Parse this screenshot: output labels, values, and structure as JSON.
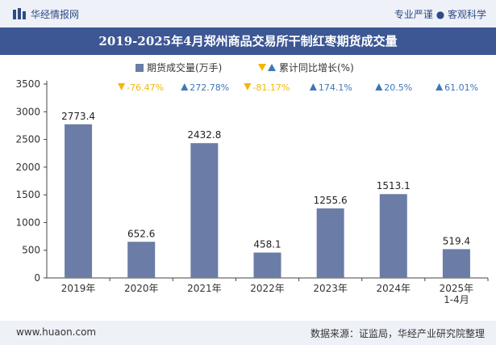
{
  "header": {
    "brand": "华经情报网",
    "tagline": "专业严谨 ● 客观科学"
  },
  "footer": {
    "url": "www.huaon.com",
    "source": "数据来源：证监局，华经产业研究院整理"
  },
  "colors": {
    "bar": "#6b7da6",
    "up": "#3d77b8",
    "down": "#f2b705",
    "title_bg": "#3c5794",
    "header_bg": "#eef1f7"
  },
  "chart_data": {
    "type": "bar",
    "title": "2019-2025年4月郑州商品交易所干制红枣期货成交量",
    "categories": [
      "2019年",
      "2020年",
      "2021年",
      "2022年",
      "2023年",
      "2024年",
      "2025年\n1-4月"
    ],
    "series": [
      {
        "name": "期货成交量(万手)",
        "values": [
          2773.4,
          652.6,
          2432.8,
          458.1,
          1255.6,
          1513.1,
          519.4
        ]
      }
    ],
    "growth": {
      "name": "累计同比增长(%)",
      "values": [
        "-76.47%",
        "272.78%",
        "-81.17%",
        "174.1%",
        "20.5%",
        "61.01%"
      ],
      "directions": [
        "down",
        "up",
        "down",
        "up",
        "up",
        "up"
      ]
    },
    "y_ticks": [
      0,
      500,
      1000,
      1500,
      2000,
      2500,
      3000,
      3500
    ],
    "ylim": [
      0,
      3500
    ],
    "legend_position": "top-center",
    "grid": false
  }
}
